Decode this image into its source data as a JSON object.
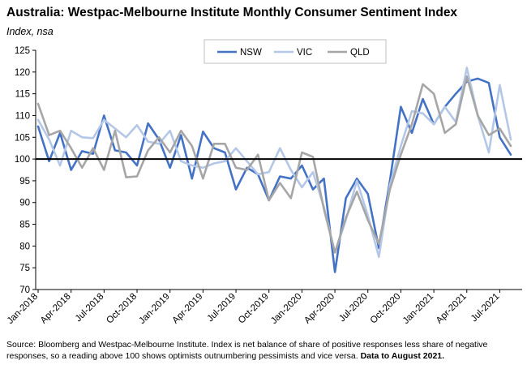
{
  "title": "Australia: Westpac-Melbourne Institute Monthly Consumer Sentiment Index",
  "subtitle": "Index, nsa",
  "source_text": "Source: Bloomberg and Westpac-Melbourne Institute.  Index is net balance of share of positive responses less share of negative responses, so a reading above 100 shows optimists outnumbering pessimists and vice versa.",
  "source_bold": "Data to August 2021.",
  "colors": {
    "NSW": "#4472c4",
    "VIC": "#b4c7e7",
    "QLD": "#a6a6a6"
  },
  "chart_data": {
    "type": "line",
    "ylim": [
      70,
      125
    ],
    "yticks": [
      70,
      75,
      80,
      85,
      90,
      95,
      100,
      105,
      110,
      115,
      120,
      125
    ],
    "baseline": 100,
    "grid": false,
    "legend_position": "top",
    "x": [
      "Jan-2018",
      "Feb-2018",
      "Mar-2018",
      "Apr-2018",
      "May-2018",
      "Jun-2018",
      "Jul-2018",
      "Aug-2018",
      "Sep-2018",
      "Oct-2018",
      "Nov-2018",
      "Dec-2018",
      "Jan-2019",
      "Feb-2019",
      "Mar-2019",
      "Apr-2019",
      "May-2019",
      "Jun-2019",
      "Jul-2019",
      "Aug-2019",
      "Sep-2019",
      "Oct-2019",
      "Nov-2019",
      "Dec-2019",
      "Jan-2020",
      "Feb-2020",
      "Mar-2020",
      "Apr-2020",
      "May-2020",
      "Jun-2020",
      "Jul-2020",
      "Aug-2020",
      "Sep-2020",
      "Oct-2020",
      "Nov-2020",
      "Dec-2020",
      "Jan-2021",
      "Feb-2021",
      "Mar-2021",
      "Apr-2021",
      "May-2021",
      "Jun-2021",
      "Jul-2021",
      "Aug-2021"
    ],
    "x_tick_labels": [
      "Jan-2018",
      "Apr-2018",
      "Jul-2018",
      "Oct-2018",
      "Jan-2019",
      "Apr-2019",
      "Jul-2019",
      "Oct-2019",
      "Jan-2020",
      "Apr-2020",
      "Jul-2020",
      "Oct-2020",
      "Jan-2021",
      "Apr-2021",
      "Jul-2021"
    ],
    "series": [
      {
        "name": "NSW",
        "values": [
          107.5,
          99.5,
          106.0,
          97.5,
          101.8,
          101.2,
          110.0,
          102.0,
          101.5,
          98.5,
          108.2,
          104.5,
          98.0,
          105.5,
          95.5,
          106.3,
          102.5,
          101.5,
          93.0,
          98.0,
          96.5,
          90.5,
          96.0,
          95.5,
          98.5,
          93.0,
          95.5,
          74.0,
          91.0,
          95.5,
          92.0,
          79.5,
          95.0,
          112.0,
          106.0,
          113.8,
          108.0,
          112.0,
          115.0,
          117.8,
          118.5,
          117.5,
          105.0,
          101.0
        ]
      },
      {
        "name": "VIC",
        "values": [
          109.0,
          104.5,
          98.5,
          106.5,
          105.0,
          104.8,
          109.0,
          107.0,
          105.0,
          107.8,
          104.0,
          103.5,
          106.5,
          99.5,
          98.5,
          98.0,
          99.0,
          99.5,
          102.5,
          99.5,
          96.5,
          97.0,
          102.5,
          97.5,
          93.5,
          97.0,
          89.0,
          78.5,
          86.0,
          95.0,
          87.0,
          77.5,
          94.0,
          103.0,
          111.0,
          110.5,
          108.0,
          112.0,
          108.5,
          121.0,
          110.0,
          101.5,
          117.0,
          104.5
        ]
      },
      {
        "name": "QLD",
        "values": [
          112.7,
          105.5,
          106.5,
          102.5,
          98.0,
          102.5,
          97.5,
          106.5,
          95.8,
          96.0,
          102.0,
          105.0,
          101.5,
          106.5,
          103.0,
          95.5,
          103.5,
          103.5,
          98.0,
          97.5,
          101.0,
          90.5,
          94.5,
          91.0,
          101.5,
          100.5,
          88.5,
          78.5,
          86.5,
          92.5,
          86.0,
          80.5,
          93.0,
          101.0,
          108.0,
          117.2,
          115.0,
          106.0,
          108.0,
          119.0,
          110.0,
          105.5,
          107.0,
          103.0
        ]
      }
    ]
  }
}
